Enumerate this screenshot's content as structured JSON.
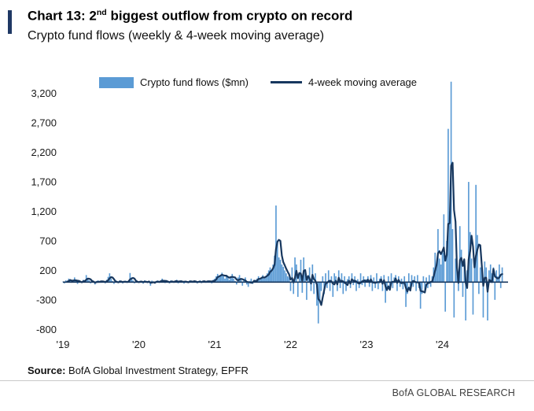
{
  "header": {
    "title_prefix": "Chart 13: 2",
    "title_sup": "nd",
    "title_suffix": " biggest outflow from crypto on record",
    "subtitle": "Crypto fund flows (weekly & 4-week moving average)"
  },
  "legend": {
    "bars_label": "Crypto fund flows ($mn)",
    "line_label": "4-week moving average"
  },
  "footer": {
    "source_label": "Source:",
    "source_text": " BofA Global Investment Strategy, EPFR",
    "brand": "BofA GLOBAL RESEARCH"
  },
  "colors": {
    "bar": "#5B9BD5",
    "line": "#17375E",
    "accent": "#1F3864"
  },
  "chart_data": {
    "type": "bar",
    "title": "Crypto fund flows (weekly & 4-week moving average)",
    "legend_position": "top",
    "grid": false,
    "x_start_year": 2019,
    "weeks_per_year": 52,
    "xtick_labels": [
      "'19",
      "'20",
      "'21",
      "'22",
      "'23",
      "'24"
    ],
    "ytick_values": [
      3200,
      2700,
      2200,
      1700,
      1200,
      700,
      200,
      -300,
      -800
    ],
    "ytick_labels": [
      "3,200",
      "2,700",
      "2,200",
      "1,700",
      "1,200",
      "700",
      "200",
      "-300",
      "-800"
    ],
    "ylim": [
      -850,
      3450
    ],
    "series": [
      {
        "name": "Crypto fund flows ($mn)",
        "type": "bar",
        "unit": "$mn",
        "cadence": "weekly",
        "values": [
          10,
          -20,
          30,
          15,
          60,
          40,
          -10,
          20,
          80,
          30,
          -30,
          10,
          25,
          -15,
          40,
          20,
          120,
          60,
          30,
          -20,
          10,
          15,
          -40,
          20,
          30,
          10,
          -10,
          25,
          15,
          -20,
          40,
          90,
          150,
          60,
          20,
          -30,
          10,
          20,
          -15,
          30,
          10,
          -20,
          15,
          25,
          -10,
          20,
          155,
          80,
          30,
          -20,
          10,
          15,
          -10,
          20,
          15,
          -25,
          30,
          10,
          -15,
          20,
          -60,
          25,
          10,
          -20,
          15,
          30,
          -10,
          20,
          60,
          25,
          -15,
          10,
          20,
          -20,
          30,
          15,
          -10,
          25,
          40,
          -20,
          10,
          30,
          15,
          -25,
          20,
          10,
          -15,
          30,
          25,
          -10,
          20,
          15,
          -20,
          10,
          30,
          -15,
          25,
          20,
          -10,
          15,
          30,
          20,
          -20,
          40,
          60,
          100,
          140,
          80,
          120,
          160,
          100,
          60,
          120,
          80,
          40,
          100,
          140,
          60,
          20,
          -40,
          80,
          120,
          60,
          -60,
          40,
          80,
          -40,
          -80,
          20,
          60,
          -30,
          40,
          20,
          60,
          100,
          40,
          80,
          120,
          60,
          100,
          150,
          200,
          250,
          180,
          300,
          450,
          1300,
          700,
          420,
          380,
          300,
          260,
          200,
          150,
          100,
          80,
          -150,
          250,
          -200,
          420,
          300,
          -250,
          150,
          380,
          -180,
          420,
          200,
          -300,
          100,
          250,
          -150,
          300,
          -200,
          150,
          -400,
          -700,
          -300,
          -150,
          100,
          -200,
          150,
          -100,
          200,
          -150,
          100,
          -250,
          150,
          100,
          -150,
          200,
          -100,
          150,
          -200,
          100,
          -150,
          50,
          100,
          -100,
          150,
          -50,
          100,
          -150,
          50,
          -100,
          150,
          -50,
          100,
          -80,
          50,
          100,
          -80,
          120,
          -150,
          80,
          -100,
          150,
          -120,
          60,
          100,
          -150,
          120,
          -350,
          -150,
          100,
          -120,
          150,
          -100,
          80,
          120,
          -150,
          100,
          -80,
          60,
          -120,
          100,
          -420,
          -200,
          150,
          -100,
          120,
          -80,
          100,
          -150,
          120,
          -100,
          -450,
          -200,
          100,
          -150,
          80,
          -100,
          120,
          -80,
          100,
          250,
          500,
          300,
          900,
          400,
          300,
          500,
          1150,
          -500,
          700,
          2600,
          1200,
          3400,
          900,
          -600,
          400,
          300,
          -150,
          950,
          550,
          -250,
          300,
          -650,
          200,
          1700,
          850,
          400,
          -550,
          300,
          1650,
          800,
          -200,
          250,
          300,
          -600,
          350,
          250,
          -650,
          200,
          300,
          150,
          250,
          -300,
          200,
          100,
          300,
          -100,
          250
        ]
      },
      {
        "name": "4-week moving average",
        "type": "line",
        "derived": "4-week moving average of the weekly flow values"
      }
    ]
  }
}
